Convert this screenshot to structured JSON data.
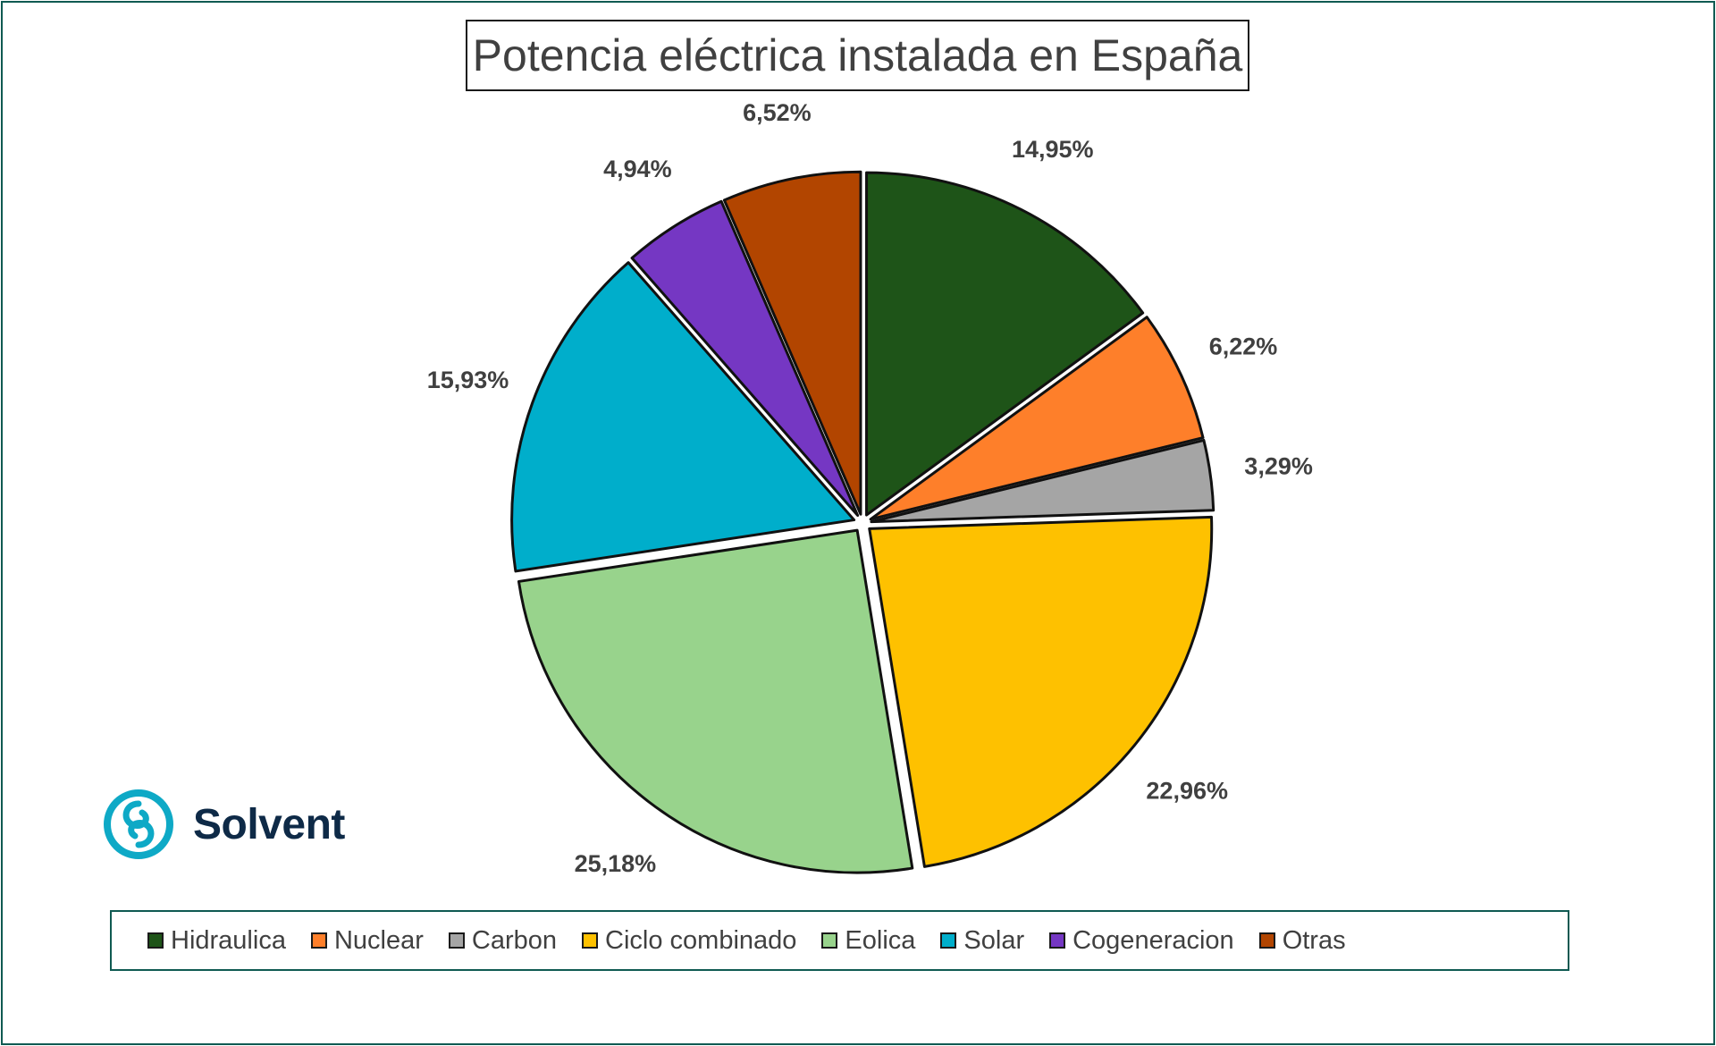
{
  "chart_data": {
    "type": "pie",
    "title": "Potencia eléctrica instalada en España",
    "categories": [
      "Hidraulica",
      "Nuclear",
      "Carbon",
      "Ciclo combinado",
      "Eolica",
      "Solar",
      "Cogeneracion",
      "Otras"
    ],
    "values": [
      14.95,
      6.22,
      3.29,
      22.96,
      25.18,
      15.93,
      4.94,
      6.52
    ],
    "data_labels": [
      "14,95%",
      "6,22%",
      "3,29%",
      "22,96%",
      "25,18%",
      "15,93%",
      "4,94%",
      "6,52%"
    ],
    "colors": [
      "#1e5418",
      "#fe7f2a",
      "#a5a5a5",
      "#fec100",
      "#98d38c",
      "#00aecb",
      "#7537c3",
      "#b24500"
    ],
    "exploded": true,
    "legend_position": "bottom"
  },
  "logo": {
    "name": "Solvent",
    "icon": "swirl-logo-icon",
    "color": "#0ea9c6",
    "text_color": "#0e2a47"
  }
}
